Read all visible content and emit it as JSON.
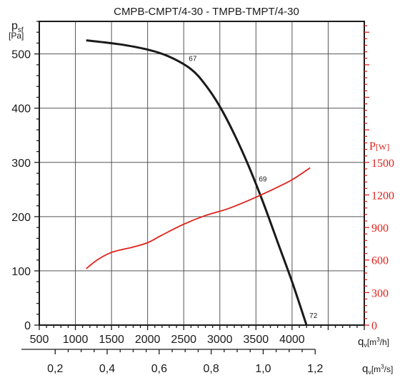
{
  "chart_data": {
    "type": "line",
    "title": "CMPB-CMPT/4-30 - TMPB-TMPT/4-30",
    "left_axis": {
      "label_main": "p",
      "label_sub": "sf",
      "unit": "[Pa]",
      "range": [
        0,
        560
      ],
      "ticks": [
        0,
        100,
        200,
        300,
        400,
        500
      ]
    },
    "right_axis": {
      "label_main": "P",
      "unit": "[W]",
      "color": "#e0211b",
      "range": [
        0,
        2800
      ],
      "ticks": [
        0,
        300,
        600,
        900,
        1200,
        1500
      ]
    },
    "x_axis_m3h": {
      "label_main": "q",
      "label_sub": "v",
      "unit_pre": "[m",
      "unit_sup": "3",
      "unit_post": "/h]",
      "range": [
        500,
        5000
      ],
      "ticks": [
        500,
        1000,
        1500,
        2000,
        2500,
        3000,
        3500,
        4000
      ]
    },
    "x_axis_m3s": {
      "label_main": "q",
      "label_sub": "v",
      "unit_pre": "[m",
      "unit_sup": "3",
      "unit_post": "/s]",
      "ticks": [
        {
          "value": 0.2,
          "text": "0,2"
        },
        {
          "value": 0.4,
          "text": "0,4"
        },
        {
          "value": 0.6,
          "text": "0,6"
        },
        {
          "value": 0.8,
          "text": "0,8"
        },
        {
          "value": 1.0,
          "text": "1,0"
        },
        {
          "value": 1.2,
          "text": "1,2"
        }
      ]
    },
    "grid": true,
    "series": [
      {
        "axis": "left",
        "color": "#1a1a1a",
        "points": [
          [
            1150,
            525
          ],
          [
            1600,
            518
          ],
          [
            2000,
            508
          ],
          [
            2300,
            495
          ],
          [
            2600,
            472
          ],
          [
            2800,
            443
          ],
          [
            3000,
            403
          ],
          [
            3200,
            352
          ],
          [
            3400,
            293
          ],
          [
            3600,
            226
          ],
          [
            3800,
            153
          ],
          [
            4000,
            80
          ],
          [
            4200,
            0
          ]
        ]
      },
      {
        "axis": "right",
        "color": "#e0211b",
        "points": [
          [
            1150,
            520
          ],
          [
            1300,
            600
          ],
          [
            1500,
            670
          ],
          [
            1800,
            720
          ],
          [
            2000,
            760
          ],
          [
            2200,
            830
          ],
          [
            2500,
            930
          ],
          [
            2800,
            1010
          ],
          [
            3100,
            1070
          ],
          [
            3400,
            1150
          ],
          [
            3700,
            1240
          ],
          [
            4000,
            1340
          ],
          [
            4250,
            1450
          ]
        ]
      }
    ],
    "annotations": [
      {
        "text": "67",
        "x": 2570,
        "y": 487
      },
      {
        "text": "69",
        "x": 3540,
        "y": 265
      },
      {
        "text": "72",
        "x": 4240,
        "y": 13
      }
    ]
  }
}
